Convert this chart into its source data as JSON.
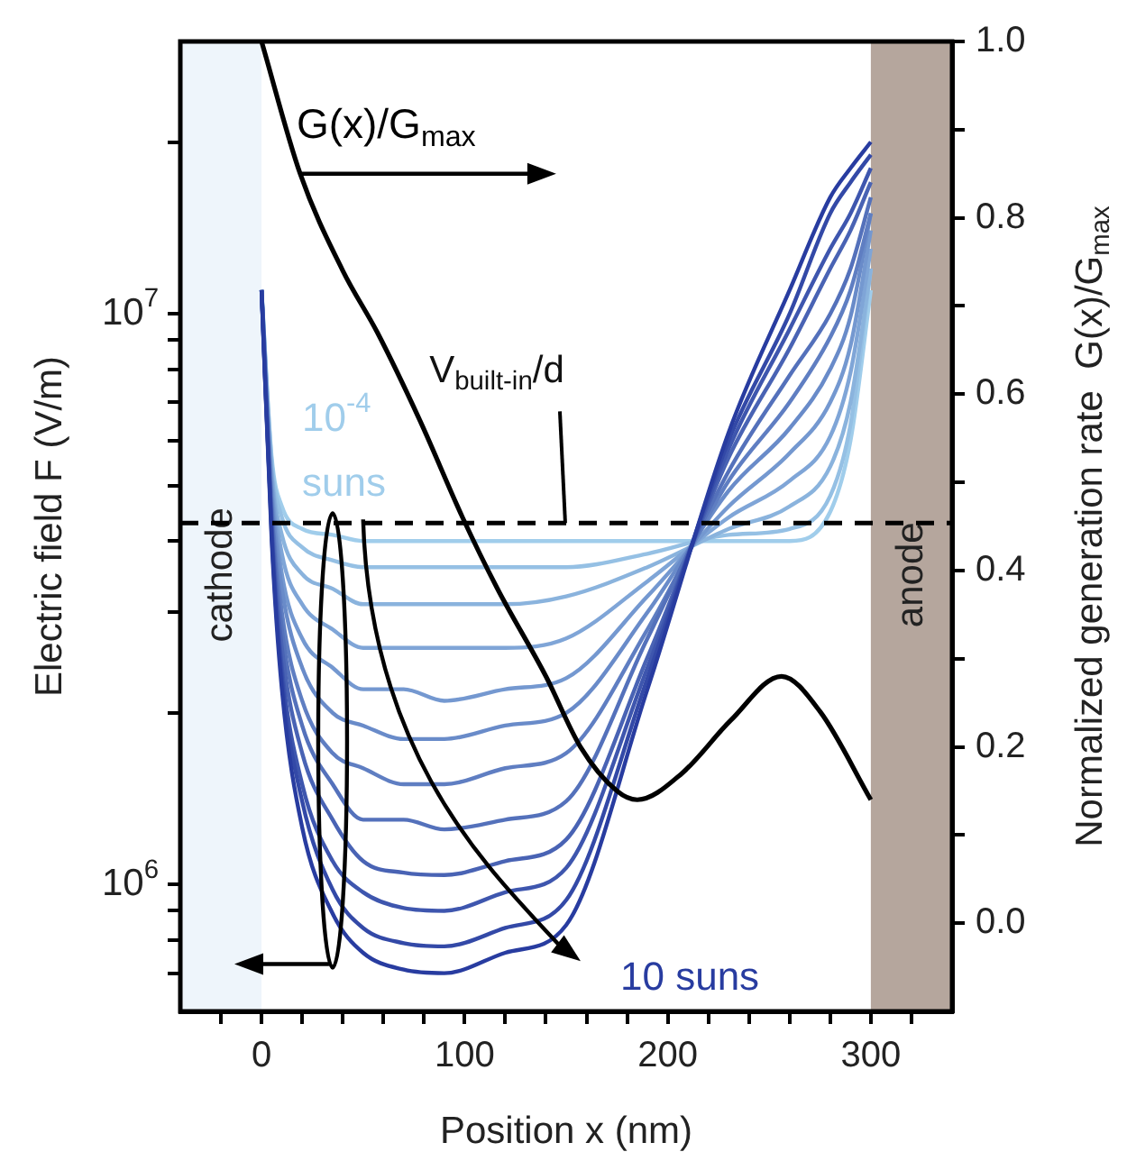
{
  "chart_data": {
    "type": "line",
    "xlabel": "Position x (nm)",
    "ylabel": "Electric field F (V/m)",
    "y2label": "Normalized generation rate  G(x)/G$_{max}$",
    "x": [
      0,
      5,
      10,
      20,
      35,
      50,
      70,
      90,
      120,
      150,
      190,
      230,
      260,
      280,
      290,
      300
    ],
    "series": [
      {
        "name": "10$^{-4}$ suns",
        "color": "#a0cdeb",
        "values": [
          11000000.0,
          5600000.0,
          4600000.0,
          4200000.0,
          4100000.0,
          4000000.0,
          4000000.0,
          4000000.0,
          4000000.0,
          4000000.0,
          4000000.0,
          4000000.0,
          4000000.0,
          4500000.0,
          6000000.0,
          11000000.0
        ]
      },
      {
        "color": "#95c0e4",
        "values": [
          11000000.0,
          5500000.0,
          4400000.0,
          3900000.0,
          3700000.0,
          3600000.0,
          3600000.0,
          3600000.0,
          3600000.0,
          3600000.0,
          3800000.0,
          4100000.0,
          4200000.0,
          4800000.0,
          6400000.0,
          12000000.0
        ]
      },
      {
        "color": "#8ab3dd",
        "values": [
          11000000.0,
          5300000.0,
          4100000.0,
          3500000.0,
          3300000.0,
          3100000.0,
          3100000.0,
          3100000.0,
          3100000.0,
          3200000.0,
          3600000.0,
          4200000.0,
          4600000.0,
          5400000.0,
          7000000.0,
          12000000.0
        ]
      },
      {
        "color": "#7fa5d7",
        "values": [
          11000000.0,
          5200000.0,
          3800000.0,
          3100000.0,
          2800000.0,
          2600000.0,
          2600000.0,
          2600000.0,
          2600000.0,
          2700000.0,
          3400000.0,
          4400000.0,
          5100000.0,
          6100000.0,
          7900000.0,
          13000000.0
        ]
      },
      {
        "color": "#7498d0",
        "values": [
          11000000.0,
          5000000.0,
          3500000.0,
          2700000.0,
          2400000.0,
          2200000.0,
          2200000.0,
          2100000.0,
          2200000.0,
          2300000.0,
          3200000.0,
          4600000.0,
          5700000.0,
          7000000.0,
          8800000.0,
          14000000.0
        ]
      },
      {
        "color": "#698bc9",
        "values": [
          11000000.0,
          4800000.0,
          3300000.0,
          2400000.0,
          2000000.0,
          1900000.0,
          1800000.0,
          1800000.0,
          1900000.0,
          2000000.0,
          3000000.0,
          4900000.0,
          6300000.0,
          8000000.0,
          9900000.0,
          15000000.0
        ]
      },
      {
        "color": "#5f7ec2",
        "values": [
          11000000.0,
          4600000.0,
          3000000.0,
          2100000.0,
          1700000.0,
          1600000.0,
          1500000.0,
          1500000.0,
          1600000.0,
          1700000.0,
          2800000.0,
          5100000.0,
          7000000.0,
          9100000.0,
          11000000.0,
          15000000.0
        ]
      },
      {
        "color": "#5471bb",
        "values": [
          11000000.0,
          4500000.0,
          2800000.0,
          1900000.0,
          1500000.0,
          1300000.0,
          1300000.0,
          1250000.0,
          1300000.0,
          1400000.0,
          2700000.0,
          5300000.0,
          7800000.0,
          10000000.0,
          12000000.0,
          16000000.0
        ]
      },
      {
        "color": "#4963b4",
        "values": [
          11000000.0,
          4300000.0,
          2600000.0,
          1700000.0,
          1300000.0,
          1100000.0,
          1050000.0,
          1040000.0,
          1100000.0,
          1200000.0,
          2500000.0,
          5600000.0,
          8700000.0,
          12000000.0,
          14000000.0,
          17000000.0
        ]
      },
      {
        "color": "#3e56ae",
        "values": [
          11000000.0,
          4200000.0,
          2400000.0,
          1500000.0,
          1100000.0,
          970000.0,
          910000.0,
          900000.0,
          970000.0,
          1070000.0,
          2400000.0,
          5800000.0,
          9400000.0,
          13000000.0,
          15000000.0,
          18000000.0
        ]
      },
      {
        "color": "#3349a7",
        "values": [
          11000000.0,
          4100000.0,
          2300000.0,
          1400000.0,
          980000.0,
          840000.0,
          790000.0,
          780000.0,
          840000.0,
          940000.0,
          2300000.0,
          6000000.0,
          10000000.0,
          15000000.0,
          17000000.0,
          19000000.0
        ]
      },
      {
        "name": "10 suns",
        "color": "#283ca0",
        "values": [
          11000000.0,
          4000000.0,
          2200000.0,
          1260000.0,
          890000.0,
          760000.0,
          710000.0,
          700000.0,
          760000.0,
          850000.0,
          2200000.0,
          6200000.0,
          11000000.0,
          16000000.0,
          18000000.0,
          20000000.0
        ]
      },
      {
        "name": "G(x)/G$_{max}$",
        "type": "line",
        "axis": "y2",
        "color": "#000000",
        "x": [
          0,
          19,
          40,
          57,
          78,
          99,
          116,
          140,
          157,
          175,
          185,
          207,
          231,
          256,
          275,
          300
        ],
        "values": [
          1.0,
          0.85,
          0.74,
          0.67,
          0.57,
          0.46,
          0.38,
          0.28,
          0.2,
          0.15,
          0.14,
          0.17,
          0.23,
          0.28,
          0.24,
          0.14
        ]
      }
    ],
    "xlim": [
      -40,
      340
    ],
    "xticks": [
      {
        "value": -20,
        "label": null
      },
      0,
      {
        "value": 20,
        "label": null
      },
      {
        "value": 40,
        "label": null
      },
      {
        "value": 60,
        "label": null
      },
      {
        "value": 80,
        "label": null
      },
      100,
      {
        "value": 120,
        "label": null
      },
      {
        "value": 140,
        "label": null
      },
      {
        "value": 160,
        "label": null
      },
      {
        "value": 180,
        "label": null
      },
      200,
      {
        "value": 220,
        "label": null
      },
      {
        "value": 240,
        "label": null
      },
      {
        "value": 260,
        "label": null
      },
      {
        "value": 280,
        "label": null
      },
      300,
      {
        "value": 320,
        "label": null
      }
    ],
    "log": "y",
    "ylim": [
      600000,
      30000000
    ],
    "yticks": [
      {
        "value": 700000,
        "label": null
      },
      {
        "value": 800000,
        "label": null
      },
      {
        "value": 900000,
        "label": null
      },
      {
        "value": 1000000,
        "label": "10$^{6}$"
      },
      {
        "value": 2000000,
        "label": null
      },
      {
        "value": 3000000,
        "label": null
      },
      {
        "value": 4000000,
        "label": null
      },
      {
        "value": 5000000,
        "label": null
      },
      {
        "value": 6000000,
        "label": null
      },
      {
        "value": 7000000,
        "label": null
      },
      {
        "value": 8000000,
        "label": null
      },
      {
        "value": 9000000,
        "label": null
      },
      {
        "value": 10000000,
        "label": "10$^{7}$"
      },
      {
        "value": 20000000,
        "label": null
      }
    ],
    "y2lim": [
      -0.1,
      1.0
    ],
    "y2ticks": [
      {
        "value": 0,
        "label": "0.0"
      },
      {
        "value": 0.1,
        "label": null
      },
      0.2,
      {
        "value": 0.3,
        "label": null
      },
      0.4,
      {
        "value": 0.5,
        "label": null
      },
      0.6,
      {
        "value": 0.7,
        "label": null
      },
      0.8,
      {
        "value": 0.9,
        "label": null
      },
      {
        "value": 1.0,
        "label": "1.0"
      }
    ],
    "ref_lines": [
      {
        "axis": "y",
        "value": 4300000,
        "label": "V$_{built-in}$/d",
        "color": "#000000",
        "line_style": "dashed"
      }
    ],
    "bands": [
      {
        "axis": "x",
        "from": -40,
        "to": 0,
        "label": "cathode",
        "color": "#eef5fb"
      },
      {
        "axis": "x",
        "from": 300,
        "to": 340,
        "label": "anode",
        "color": "#b5a69d"
      }
    ],
    "marker": "none",
    "grid": false,
    "legend": false
  }
}
